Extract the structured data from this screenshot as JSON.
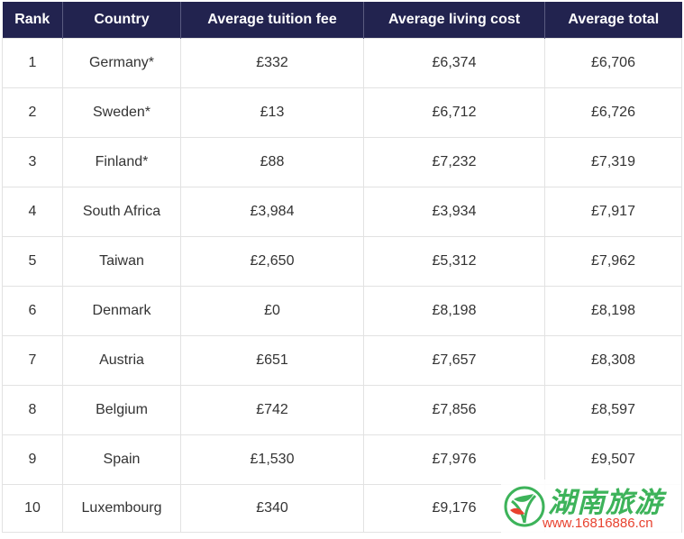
{
  "table": {
    "headers": [
      "Rank",
      "Country",
      "Average tuition fee",
      "Average living cost",
      "Average total"
    ],
    "rows": [
      [
        "1",
        "Germany*",
        "£332",
        "£6,374",
        "£6,706"
      ],
      [
        "2",
        "Sweden*",
        "£13",
        "£6,712",
        "£6,726"
      ],
      [
        "3",
        "Finland*",
        "£88",
        "£7,232",
        "£7,319"
      ],
      [
        "4",
        "South Africa",
        "£3,984",
        "£3,934",
        "£7,917"
      ],
      [
        "5",
        "Taiwan",
        "£2,650",
        "£5,312",
        "£7,962"
      ],
      [
        "6",
        "Denmark",
        "£0",
        "£8,198",
        "£8,198"
      ],
      [
        "7",
        "Austria",
        "£651",
        "£7,657",
        "£8,308"
      ],
      [
        "8",
        "Belgium",
        "£742",
        "£7,856",
        "£8,597"
      ],
      [
        "9",
        "Spain",
        "£1,530",
        "£7,976",
        "£9,507"
      ],
      [
        "10",
        "Luxembourg",
        "£340",
        "£9,176",
        ""
      ]
    ]
  },
  "watermark": {
    "title": "湖南旅游",
    "url": "www.16816886.cn"
  },
  "colors": {
    "header_bg": "#22234f",
    "header_text": "#ffffff",
    "watermark_green": "#3db35a",
    "watermark_red": "#e8422f"
  }
}
